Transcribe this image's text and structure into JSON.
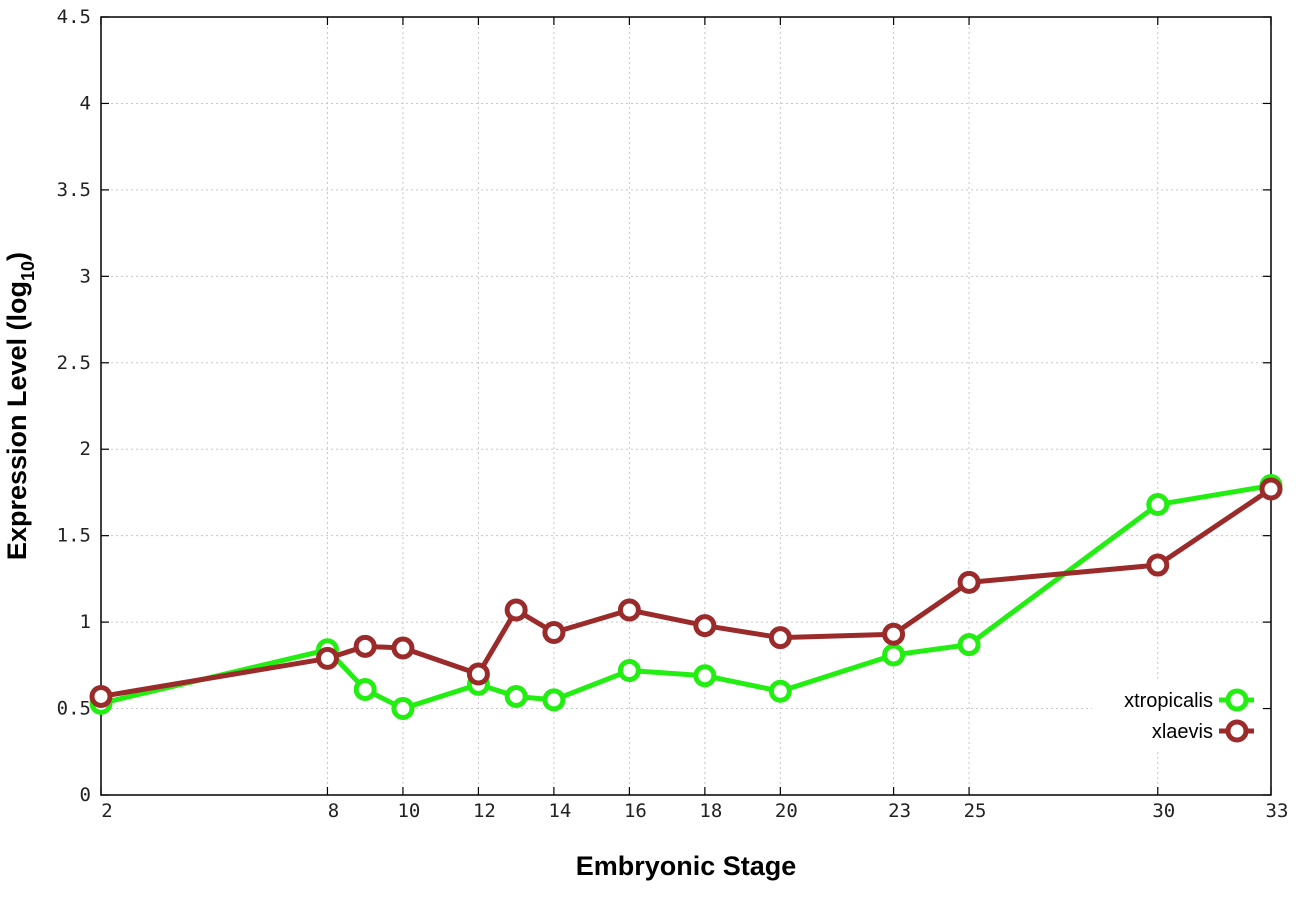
{
  "chart_data": {
    "type": "line",
    "xlabel": "Embryonic Stage",
    "ylabel_main": "Expression Level (log",
    "ylabel_sub": "10",
    "ylabel_end": ")",
    "xlim": [
      2,
      33
    ],
    "ylim": [
      0,
      4.5
    ],
    "x_ticks": [
      2,
      8,
      10,
      12,
      14,
      16,
      18,
      20,
      23,
      25,
      30,
      33
    ],
    "x_tick_labels": [
      "2",
      "8",
      "10",
      "12",
      "14",
      "16",
      "18",
      "20",
      "23",
      "25",
      "30",
      "33"
    ],
    "y_ticks": [
      0,
      0.5,
      1,
      1.5,
      2,
      2.5,
      3,
      3.5,
      4,
      4.5
    ],
    "y_tick_labels": [
      "0",
      "0.5",
      "1",
      "1.5",
      "2",
      "2.5",
      "3",
      "3.5",
      "4",
      "4.5"
    ],
    "grid": true,
    "legend_position": "bottom-right",
    "series": [
      {
        "name": "xtropicalis",
        "color": "#22ee11",
        "x": [
          2,
          8,
          9,
          10,
          12,
          13,
          14,
          16,
          18,
          20,
          23,
          25,
          30,
          33
        ],
        "y": [
          0.53,
          0.84,
          0.61,
          0.5,
          0.64,
          0.57,
          0.55,
          0.72,
          0.69,
          0.6,
          0.81,
          0.87,
          1.68,
          1.79
        ]
      },
      {
        "name": "xlaevis",
        "color": "#9b2b2b",
        "x": [
          2,
          8,
          9,
          10,
          12,
          13,
          14,
          16,
          18,
          20,
          23,
          25,
          30,
          33
        ],
        "y": [
          0.57,
          0.79,
          0.86,
          0.85,
          0.7,
          1.07,
          0.94,
          1.07,
          0.98,
          0.91,
          0.93,
          1.23,
          1.33,
          1.77
        ]
      }
    ]
  }
}
